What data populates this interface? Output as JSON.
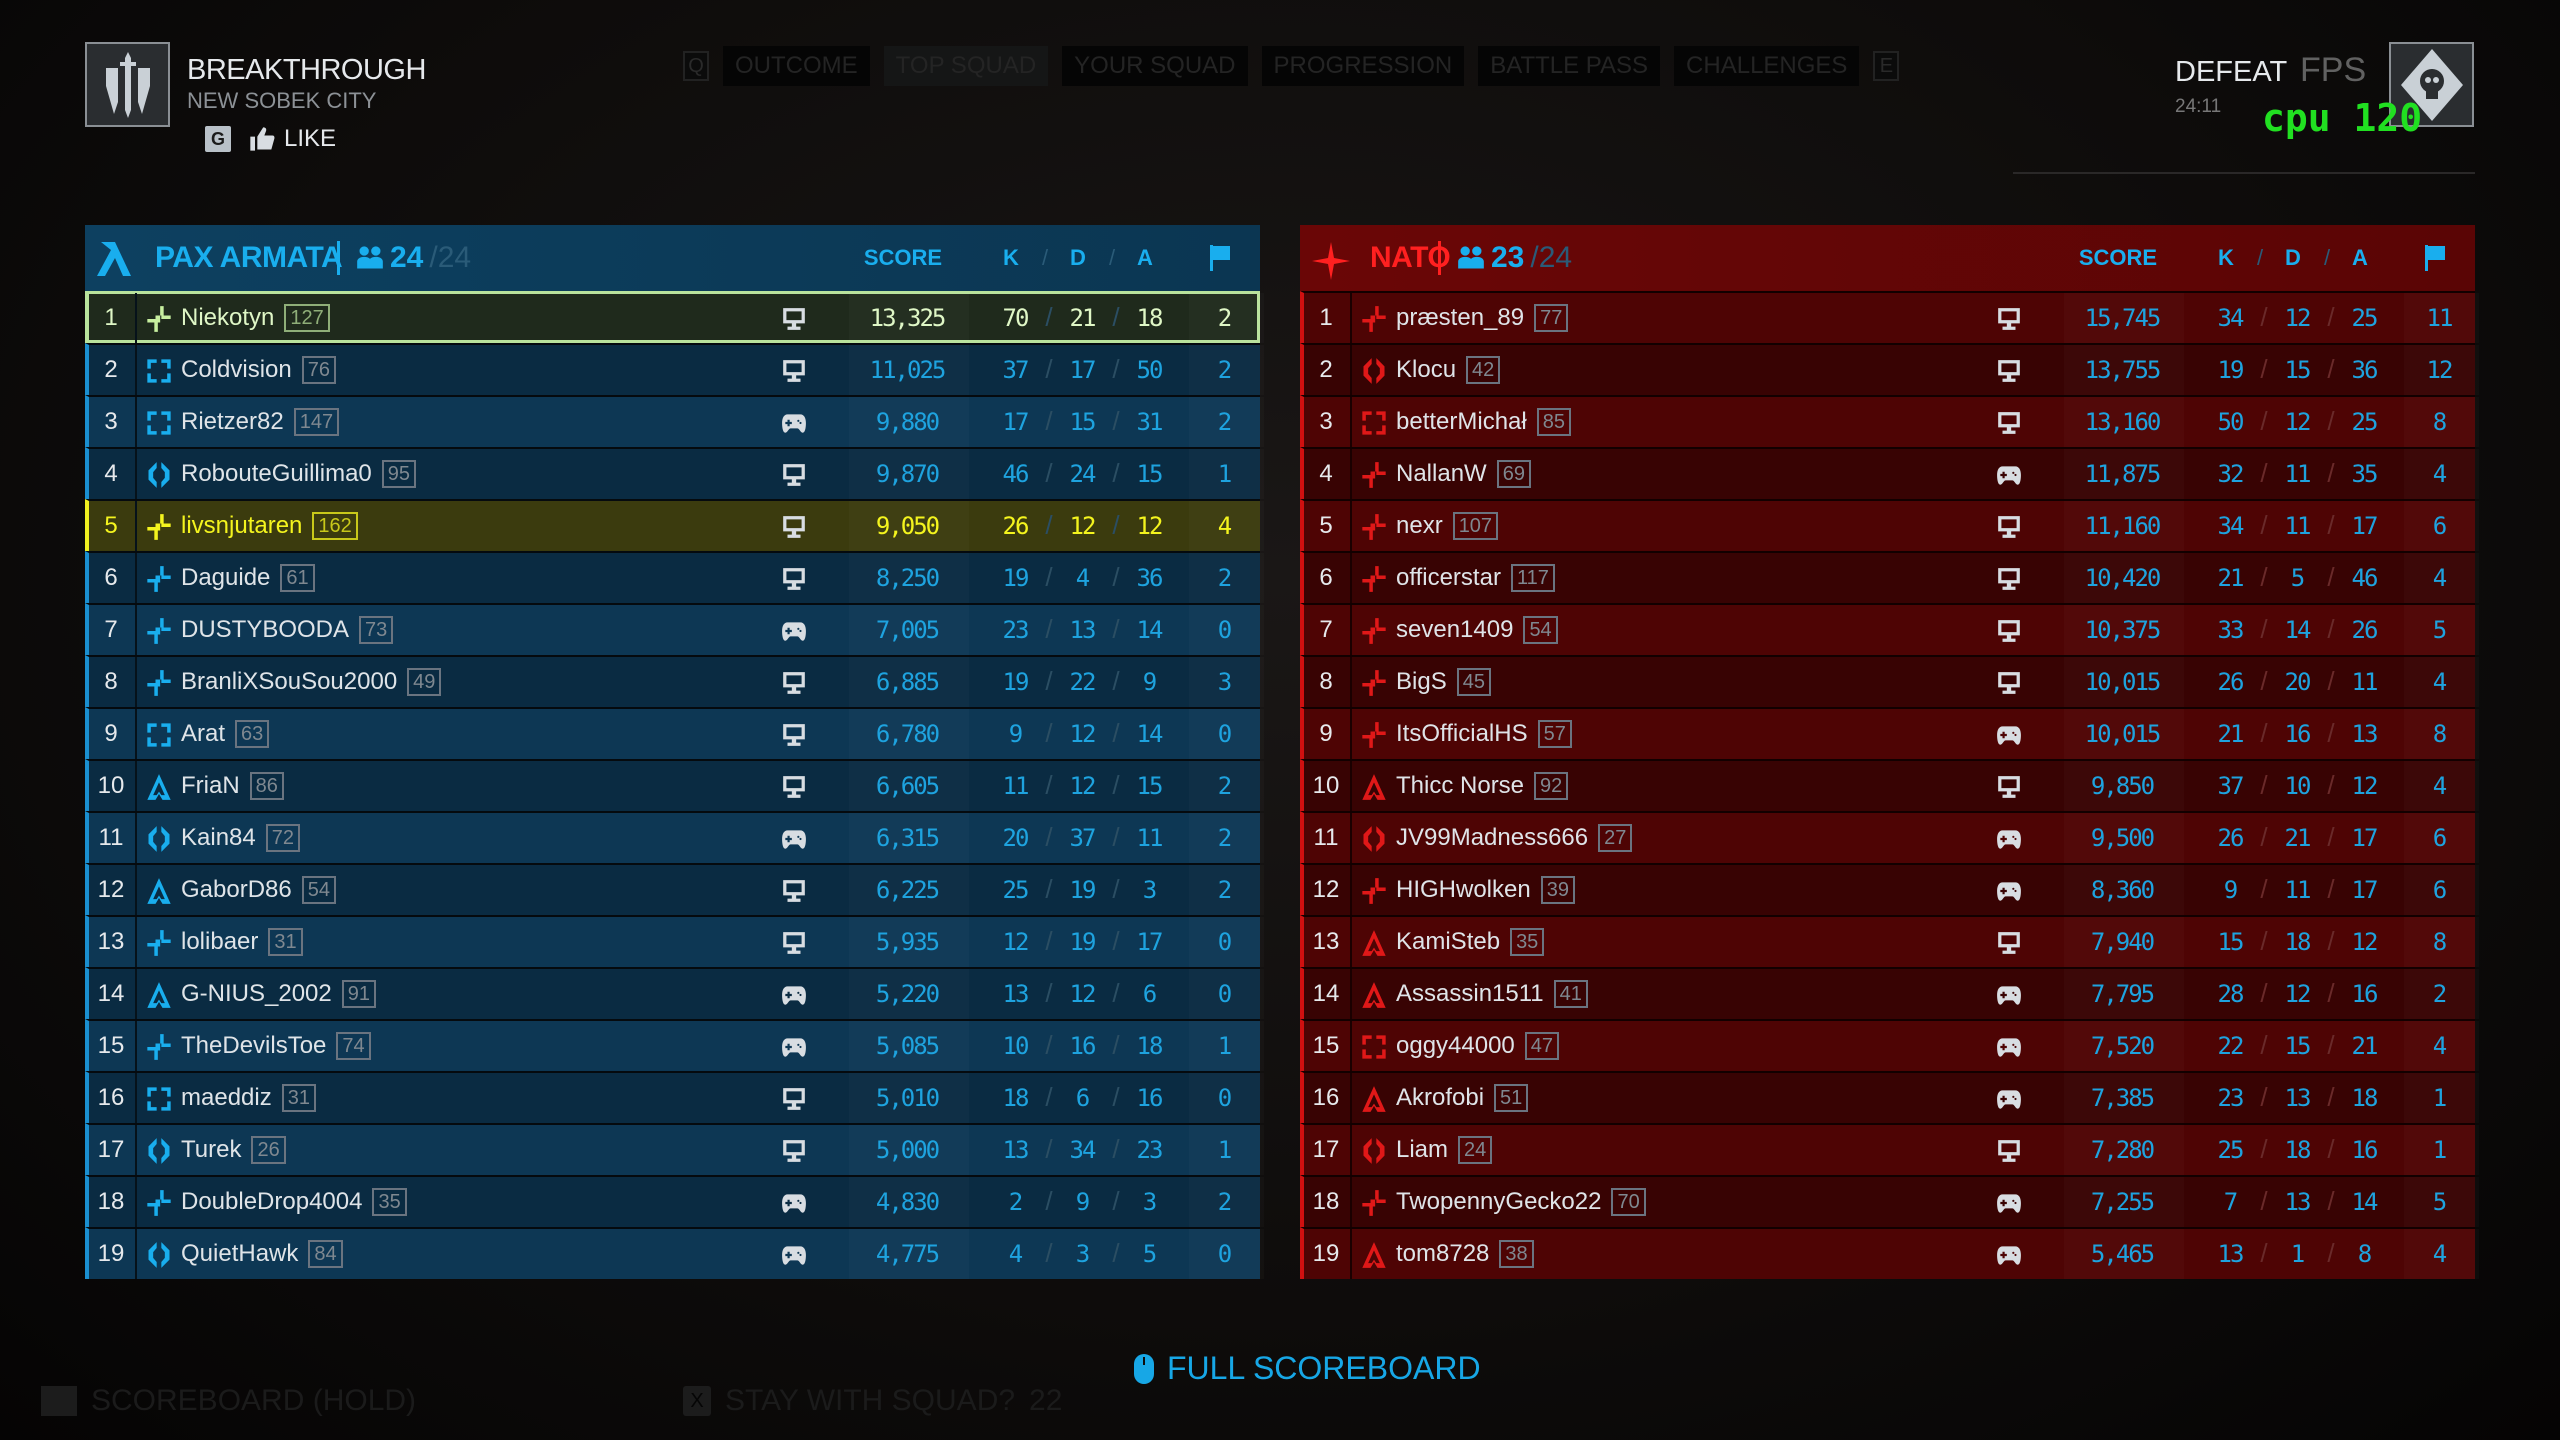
{
  "header": {
    "mode": "BREAKTHROUGH",
    "map": "NEW SOBEK CITY",
    "like_key": "G",
    "like_label": "LIKE",
    "tab_prev_key": "Q",
    "tab_next_key": "E",
    "tabs": [
      "OUTCOME",
      "TOP SQUAD",
      "YOUR SQUAD",
      "PROGRESSION",
      "BATTLE PASS",
      "CHALLENGES"
    ],
    "active_tab": "TOP SQUAD",
    "outcome": "DEFEAT",
    "match_time": "24:11",
    "overlay_fps": "FPS",
    "overlay_cpu": "cpu 120"
  },
  "columns": {
    "score": "SCORE",
    "k": "K",
    "d": "D",
    "a": "A",
    "slash": "/",
    "objective_icon": "flag-icon"
  },
  "colors": {
    "pax_accent": "#19aeee",
    "nato_accent": "#ff2020",
    "stat_blue": "#1ea3df",
    "top_player": "#b9e39c",
    "local_player": "#f4f41e",
    "overlay_green": "#21e021"
  },
  "teams": [
    {
      "id": "pax",
      "name": "PAX ARMATA",
      "count": "24",
      "max": "/24",
      "players": [
        {
          "rank": "1",
          "name": "Niekotyn",
          "level": "127",
          "squad": "bolt",
          "platform": "pc",
          "score": "13,325",
          "k": "70",
          "d": "21",
          "a": "18",
          "obj": "2",
          "highlight": "top"
        },
        {
          "rank": "2",
          "name": "Coldvision",
          "level": "76",
          "squad": "bracket",
          "platform": "pc",
          "score": "11,025",
          "k": "37",
          "d": "17",
          "a": "50",
          "obj": "2"
        },
        {
          "rank": "3",
          "name": "Rietzer82",
          "level": "147",
          "squad": "bracket",
          "platform": "pad",
          "score": "9,880",
          "k": "17",
          "d": "15",
          "a": "31",
          "obj": "2"
        },
        {
          "rank": "4",
          "name": "RobouteGuillima0",
          "level": "95",
          "squad": "ring",
          "platform": "pc",
          "score": "9,870",
          "k": "46",
          "d": "24",
          "a": "15",
          "obj": "1"
        },
        {
          "rank": "5",
          "name": "livsnjutaren",
          "level": "162",
          "squad": "bolt",
          "platform": "pc",
          "score": "9,050",
          "k": "26",
          "d": "12",
          "a": "12",
          "obj": "4",
          "highlight": "me"
        },
        {
          "rank": "6",
          "name": "Daguide",
          "level": "61",
          "squad": "bolt",
          "platform": "pc",
          "score": "8,250",
          "k": "19",
          "d": "4",
          "a": "36",
          "obj": "2"
        },
        {
          "rank": "7",
          "name": "DUSTYBOODA",
          "level": "73",
          "squad": "bolt",
          "platform": "pad",
          "score": "7,005",
          "k": "23",
          "d": "13",
          "a": "14",
          "obj": "0"
        },
        {
          "rank": "8",
          "name": "BranliXSouSou2000",
          "level": "49",
          "squad": "bolt",
          "platform": "pc",
          "score": "6,885",
          "k": "19",
          "d": "22",
          "a": "9",
          "obj": "3"
        },
        {
          "rank": "9",
          "name": "Arat",
          "level": "63",
          "squad": "bracket",
          "platform": "pc",
          "score": "6,780",
          "k": "9",
          "d": "12",
          "a": "14",
          "obj": "0"
        },
        {
          "rank": "10",
          "name": "FriaN",
          "level": "86",
          "squad": "triangle",
          "platform": "pc",
          "score": "6,605",
          "k": "11",
          "d": "12",
          "a": "15",
          "obj": "2"
        },
        {
          "rank": "11",
          "name": "Kain84",
          "level": "72",
          "squad": "ring",
          "platform": "pad",
          "score": "6,315",
          "k": "20",
          "d": "37",
          "a": "11",
          "obj": "2"
        },
        {
          "rank": "12",
          "name": "GaborD86",
          "level": "54",
          "squad": "triangle",
          "platform": "pc",
          "score": "6,225",
          "k": "25",
          "d": "19",
          "a": "3",
          "obj": "2"
        },
        {
          "rank": "13",
          "name": "lolibaer",
          "level": "31",
          "squad": "bolt",
          "platform": "pc",
          "score": "5,935",
          "k": "12",
          "d": "19",
          "a": "17",
          "obj": "0"
        },
        {
          "rank": "14",
          "name": "G-NIUS_2002",
          "level": "91",
          "squad": "triangle",
          "platform": "pad",
          "score": "5,220",
          "k": "13",
          "d": "12",
          "a": "6",
          "obj": "0"
        },
        {
          "rank": "15",
          "name": "TheDevilsToe",
          "level": "74",
          "squad": "bolt",
          "platform": "pad",
          "score": "5,085",
          "k": "10",
          "d": "16",
          "a": "18",
          "obj": "1"
        },
        {
          "rank": "16",
          "name": "maeddiz",
          "level": "31",
          "squad": "bracket",
          "platform": "pc",
          "score": "5,010",
          "k": "18",
          "d": "6",
          "a": "16",
          "obj": "0"
        },
        {
          "rank": "17",
          "name": "Turek",
          "level": "26",
          "squad": "ring",
          "platform": "pc",
          "score": "5,000",
          "k": "13",
          "d": "34",
          "a": "23",
          "obj": "1"
        },
        {
          "rank": "18",
          "name": "DoubleDrop4004",
          "level": "35",
          "squad": "bolt",
          "platform": "pad",
          "score": "4,830",
          "k": "2",
          "d": "9",
          "a": "3",
          "obj": "2"
        },
        {
          "rank": "19",
          "name": "QuietHawk",
          "level": "84",
          "squad": "ring",
          "platform": "pad",
          "score": "4,775",
          "k": "4",
          "d": "3",
          "a": "5",
          "obj": "0"
        }
      ]
    },
    {
      "id": "nato",
      "name": "NATO",
      "count": "23",
      "max": "/24",
      "players": [
        {
          "rank": "1",
          "name": "præsten_89",
          "level": "77",
          "squad": "bolt",
          "platform": "pc",
          "score": "15,745",
          "k": "34",
          "d": "12",
          "a": "25",
          "obj": "11"
        },
        {
          "rank": "2",
          "name": "Klocu",
          "level": "42",
          "squad": "ring",
          "platform": "pc",
          "score": "13,755",
          "k": "19",
          "d": "15",
          "a": "36",
          "obj": "12"
        },
        {
          "rank": "3",
          "name": "betterMichał",
          "level": "85",
          "squad": "bracket",
          "platform": "pc",
          "score": "13,160",
          "k": "50",
          "d": "12",
          "a": "25",
          "obj": "8"
        },
        {
          "rank": "4",
          "name": "NallanW",
          "level": "69",
          "squad": "bolt",
          "platform": "pad",
          "score": "11,875",
          "k": "32",
          "d": "11",
          "a": "35",
          "obj": "4"
        },
        {
          "rank": "5",
          "name": "nexr",
          "level": "107",
          "squad": "bolt",
          "platform": "pc",
          "score": "11,160",
          "k": "34",
          "d": "11",
          "a": "17",
          "obj": "6"
        },
        {
          "rank": "6",
          "name": "officerstar",
          "level": "117",
          "squad": "bolt",
          "platform": "pc",
          "score": "10,420",
          "k": "21",
          "d": "5",
          "a": "46",
          "obj": "4"
        },
        {
          "rank": "7",
          "name": "seven1409",
          "level": "54",
          "squad": "bolt",
          "platform": "pc",
          "score": "10,375",
          "k": "33",
          "d": "14",
          "a": "26",
          "obj": "5"
        },
        {
          "rank": "8",
          "name": "BigS",
          "level": "45",
          "squad": "bolt",
          "platform": "pc",
          "score": "10,015",
          "k": "26",
          "d": "20",
          "a": "11",
          "obj": "4"
        },
        {
          "rank": "9",
          "name": "ItsOfficialHS",
          "level": "57",
          "squad": "bolt",
          "platform": "pad",
          "score": "10,015",
          "k": "21",
          "d": "16",
          "a": "13",
          "obj": "8"
        },
        {
          "rank": "10",
          "name": "Thicc Norse",
          "level": "92",
          "squad": "triangle",
          "platform": "pc",
          "score": "9,850",
          "k": "37",
          "d": "10",
          "a": "12",
          "obj": "4"
        },
        {
          "rank": "11",
          "name": "JV99Madness666",
          "level": "27",
          "squad": "ring",
          "platform": "pad",
          "score": "9,500",
          "k": "26",
          "d": "21",
          "a": "17",
          "obj": "6"
        },
        {
          "rank": "12",
          "name": "HIGHwolken",
          "level": "39",
          "squad": "bolt",
          "platform": "pad",
          "score": "8,360",
          "k": "9",
          "d": "11",
          "a": "17",
          "obj": "6"
        },
        {
          "rank": "13",
          "name": "KamiSteb",
          "level": "35",
          "squad": "triangle",
          "platform": "pc",
          "score": "7,940",
          "k": "15",
          "d": "18",
          "a": "12",
          "obj": "8"
        },
        {
          "rank": "14",
          "name": "Assassin1511",
          "level": "41",
          "squad": "triangle",
          "platform": "pad",
          "score": "7,795",
          "k": "28",
          "d": "12",
          "a": "16",
          "obj": "2"
        },
        {
          "rank": "15",
          "name": "oggy44000",
          "level": "47",
          "squad": "bracket",
          "platform": "pad",
          "score": "7,520",
          "k": "22",
          "d": "15",
          "a": "21",
          "obj": "4"
        },
        {
          "rank": "16",
          "name": "Akrofobi",
          "level": "51",
          "squad": "triangle",
          "platform": "pad",
          "score": "7,385",
          "k": "23",
          "d": "13",
          "a": "18",
          "obj": "1"
        },
        {
          "rank": "17",
          "name": "Liam",
          "level": "24",
          "squad": "ring",
          "platform": "pc",
          "score": "7,280",
          "k": "25",
          "d": "18",
          "a": "16",
          "obj": "1"
        },
        {
          "rank": "18",
          "name": "TwopennyGecko22",
          "level": "70",
          "squad": "bolt",
          "platform": "pad",
          "score": "7,255",
          "k": "7",
          "d": "13",
          "a": "14",
          "obj": "5"
        },
        {
          "rank": "19",
          "name": "tom8728",
          "level": "38",
          "squad": "triangle",
          "platform": "pad",
          "score": "5,465",
          "k": "13",
          "d": "1",
          "a": "8",
          "obj": "4"
        }
      ]
    }
  ],
  "footer": {
    "full_scoreboard": "FULL SCOREBOARD",
    "scoreboard_hold": "SCOREBOARD (HOLD)",
    "stay_key": "X",
    "stay_with_squad": "STAY WITH SQUAD?",
    "stay_countdown": "22"
  }
}
